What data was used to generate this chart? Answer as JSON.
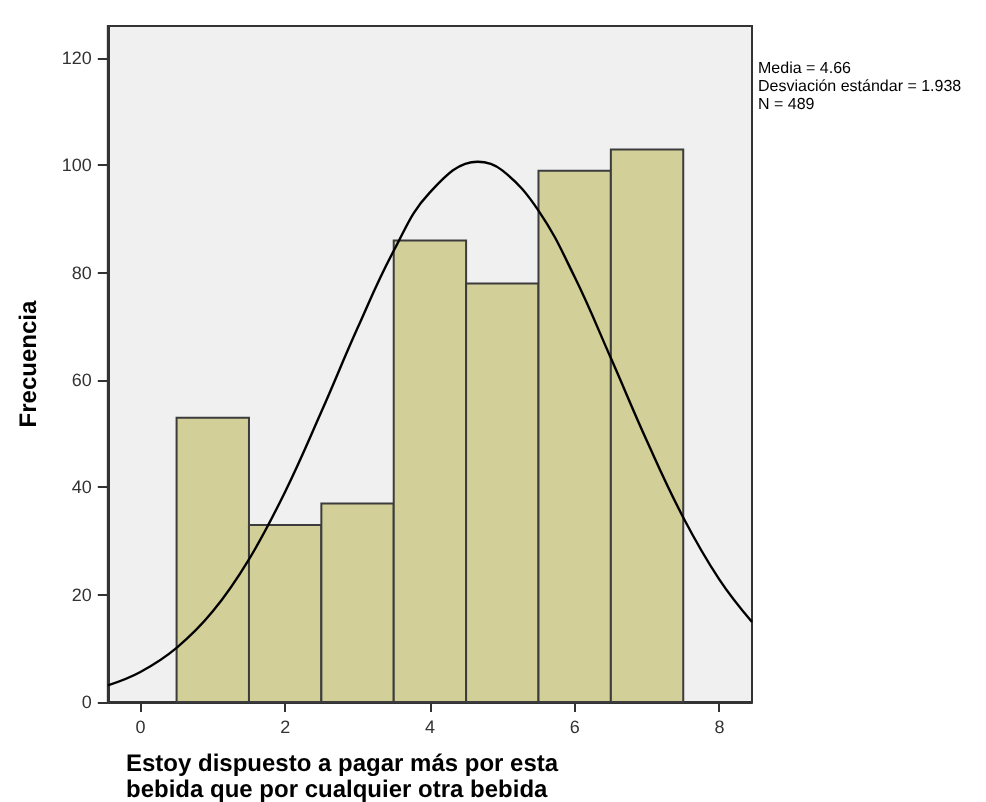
{
  "chart_data": {
    "type": "histogram",
    "xlabel": "Estoy dispuesto a pagar más por esta bebida que por cualquier otra bebida",
    "ylabel": "Frecuencia",
    "annotations": [
      "Media = 4.66",
      "Desviación estándar = 1.938",
      "N = 489"
    ],
    "bins": [
      0.5,
      1.5,
      2.5,
      3.5,
      4.5,
      5.5,
      6.5,
      7.5
    ],
    "values": [
      53,
      33,
      37,
      86,
      78,
      99,
      103
    ],
    "color": "#d3cf98",
    "series": [
      {
        "type": "line",
        "color": "#000000",
        "x": [
          -0.45,
          0,
          0.5,
          1,
          1.5,
          2,
          2.5,
          3,
          3.5,
          4,
          4.66,
          5,
          5.5,
          6,
          6.5,
          7,
          7.5,
          8,
          8.45
        ],
        "values": [
          3.1,
          5.6,
          10.1,
          16.9,
          26.6,
          39.2,
          54.1,
          69.7,
          84.1,
          95.0,
          100.7,
          99.1,
          91.6,
          79.2,
          64.1,
          48.6,
          34.4,
          22.8,
          14.9
        ]
      }
    ],
    "marker": "none",
    "grid": false,
    "xlim": [
      -0.45,
      8.45
    ],
    "xticks": [
      0,
      2,
      4,
      6,
      8
    ],
    "ylim": [
      0,
      126
    ],
    "yticks": [
      0,
      20,
      40,
      60,
      80,
      100,
      120
    ]
  }
}
